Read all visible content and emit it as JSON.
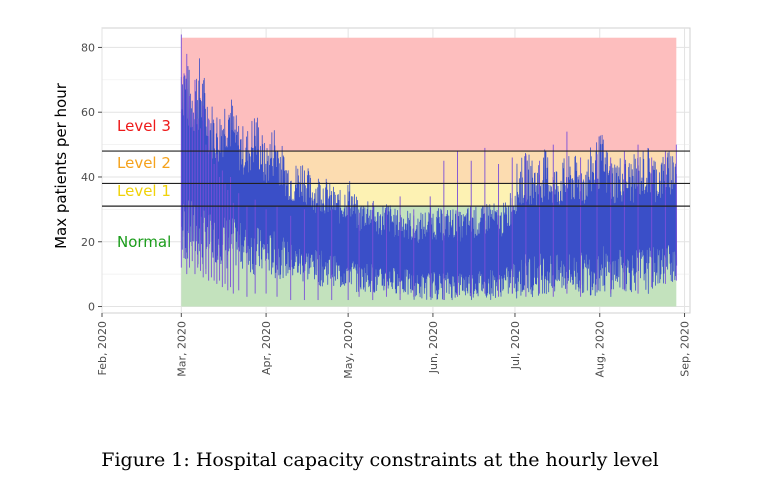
{
  "caption": "Figure 1: Hospital capacity constraints at the hourly level",
  "chart_data": {
    "type": "line",
    "title": "",
    "xlabel": "",
    "ylabel": "Max patients per hour",
    "xlim": [
      "2020-02-01",
      "2020-09-03"
    ],
    "ylim": [
      -2,
      86
    ],
    "x_ticks": [
      {
        "date": "2020-02-01",
        "label": "Feb, 2020"
      },
      {
        "date": "2020-03-01",
        "label": "Mar, 2020"
      },
      {
        "date": "2020-04-01",
        "label": "Apr, 2020"
      },
      {
        "date": "2020-05-01",
        "label": "May, 2020"
      },
      {
        "date": "2020-06-01",
        "label": "Jun, 2020"
      },
      {
        "date": "2020-07-01",
        "label": "Jul, 2020"
      },
      {
        "date": "2020-08-01",
        "label": "Aug, 2020"
      },
      {
        "date": "2020-09-01",
        "label": "Sep, 2020"
      }
    ],
    "y_ticks": [
      0,
      20,
      40,
      60,
      80
    ],
    "grid": true,
    "zones": [
      {
        "label": "Normal",
        "from": 0,
        "to": 31,
        "fill": "#c3e2bd",
        "text_color": "#1a9c1a"
      },
      {
        "label": "Level 1",
        "from": 31,
        "to": 38,
        "fill": "#fdf2b3",
        "text_color": "#f0d20a"
      },
      {
        "label": "Level 2",
        "from": 38,
        "to": 48,
        "fill": "#fcdcb0",
        "text_color": "#f5a21c"
      },
      {
        "label": "Level 3",
        "from": 48,
        "to": 83,
        "fill": "#fdbebe",
        "text_color": "#ee1a1a"
      }
    ],
    "thresholds": [
      31,
      38,
      48
    ],
    "threshold_color": "#222222",
    "series": [
      {
        "color": "#3a4fc8",
        "spike_color": "#7a4fd8",
        "x": [
          "2020-03-01",
          "2020-03-02",
          "2020-03-03",
          "2020-03-04",
          "2020-03-05",
          "2020-03-06",
          "2020-03-07",
          "2020-03-08",
          "2020-03-09",
          "2020-03-10",
          "2020-03-11",
          "2020-03-12",
          "2020-03-13",
          "2020-03-14",
          "2020-03-15",
          "2020-03-16",
          "2020-03-17",
          "2020-03-18",
          "2020-03-19",
          "2020-03-20",
          "2020-03-22",
          "2020-03-25",
          "2020-03-28",
          "2020-04-01",
          "2020-04-05",
          "2020-04-10",
          "2020-04-15",
          "2020-04-20",
          "2020-04-25",
          "2020-05-01",
          "2020-05-05",
          "2020-05-10",
          "2020-05-15",
          "2020-05-20",
          "2020-05-25",
          "2020-05-31",
          "2020-06-05",
          "2020-06-10",
          "2020-06-15",
          "2020-06-20",
          "2020-06-25",
          "2020-06-30",
          "2020-07-05",
          "2020-07-10",
          "2020-07-15",
          "2020-07-20",
          "2020-07-25",
          "2020-07-31",
          "2020-08-05",
          "2020-08-10",
          "2020-08-15",
          "2020-08-20",
          "2020-08-25",
          "2020-08-29"
        ],
        "high": [
          84,
          72,
          78,
          65,
          60,
          70,
          58,
          55,
          62,
          50,
          58,
          48,
          44,
          47,
          40,
          42,
          38,
          36,
          40,
          32,
          35,
          31,
          33,
          30,
          31,
          28,
          30,
          31,
          30,
          31,
          29,
          32,
          30,
          34,
          30,
          34,
          45,
          48,
          45,
          49,
          44,
          46,
          47,
          45,
          50,
          54,
          46,
          47,
          46,
          48,
          50,
          46,
          48,
          50
        ],
        "low": [
          12,
          15,
          10,
          12,
          14,
          10,
          12,
          11,
          9,
          10,
          8,
          9,
          8,
          7,
          8,
          6,
          7,
          5,
          6,
          4,
          5,
          3,
          4,
          4,
          3,
          2,
          2,
          2,
          2,
          2,
          3,
          2,
          3,
          2,
          3,
          3,
          2,
          3,
          3,
          4,
          3,
          4,
          3,
          4,
          3,
          4,
          3,
          5,
          4,
          5,
          4,
          6,
          7,
          8
        ]
      }
    ]
  }
}
